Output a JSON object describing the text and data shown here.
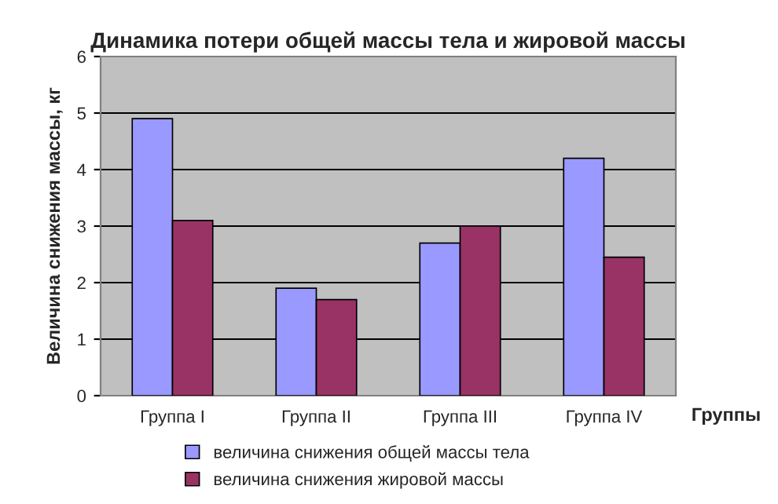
{
  "chart_data": {
    "type": "bar",
    "title": "Динамика потери общей массы тела и жировой массы",
    "xlabel": "Группы",
    "ylabel": "Величина снижения массы, кг",
    "categories": [
      "Группа I",
      "Группа II",
      "Группа III",
      "Группа IV"
    ],
    "series": [
      {
        "name": "величина снижения общей массы тела",
        "color": "#9999ff",
        "values": [
          4.9,
          1.9,
          2.7,
          4.2
        ]
      },
      {
        "name": "величина снижения жировой массы",
        "color": "#993366",
        "values": [
          3.1,
          1.7,
          3.0,
          2.45
        ]
      }
    ],
    "ylim": [
      0,
      6
    ],
    "yticks": [
      0,
      1,
      2,
      3,
      4,
      5,
      6
    ],
    "grid": "y",
    "legend": "bottom left"
  }
}
